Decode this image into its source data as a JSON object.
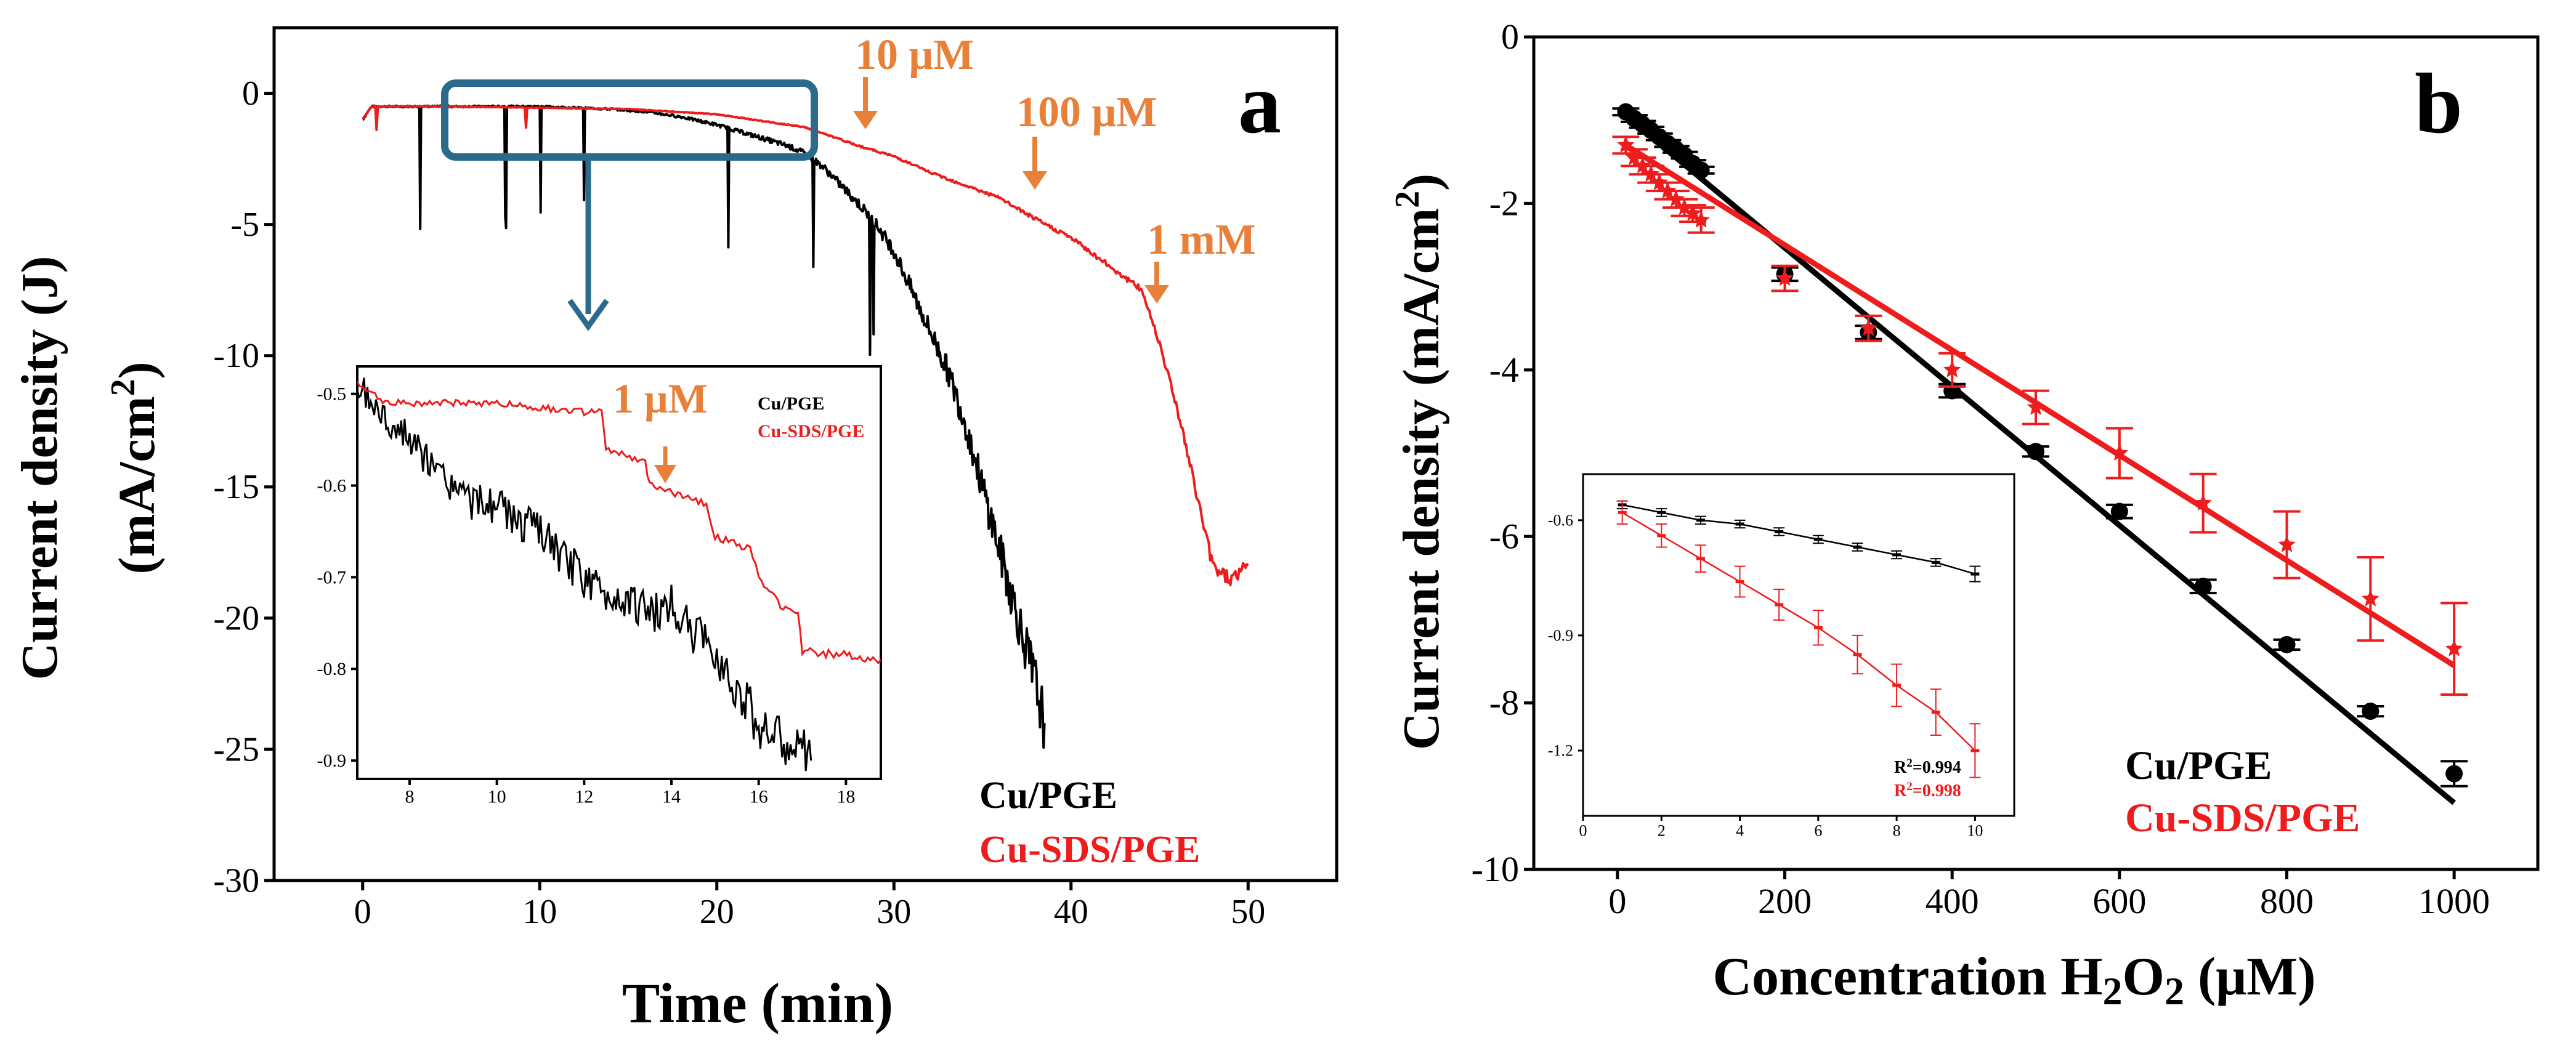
{
  "colors": {
    "black_series": "#000000",
    "red_series": "#ee1c1c",
    "annotation": "#e8803a",
    "inset_box": "#2b6a8a"
  },
  "chart_data": [
    {
      "id": "a",
      "type": "line",
      "panel_label": "a",
      "xlabel": "Time (min)",
      "ylabel_line1": "Current density (J)",
      "ylabel_line2_prefix": "(mA/cm",
      "ylabel_line2_sup": "2",
      "ylabel_line2_suffix": ")",
      "xlim": [
        -5,
        55
      ],
      "ylim": [
        -30,
        2.5
      ],
      "xticks": [
        0,
        10,
        20,
        30,
        40,
        50
      ],
      "yticks": [
        0,
        -5,
        -10,
        -15,
        -20,
        -25,
        -30
      ],
      "xtick_labels": [
        "0",
        "10",
        "20",
        "30",
        "40",
        "50"
      ],
      "ytick_labels": [
        "0",
        "-5",
        "-10",
        "-15",
        "-20",
        "-25",
        "-30"
      ],
      "legend": [
        "Cu/PGE",
        "Cu-SDS/PGE"
      ],
      "annotations": [
        {
          "text": "10 μM",
          "x": 28.5,
          "y": -2.2
        },
        {
          "text": "100 μM",
          "x": 38,
          "y": -6.0
        },
        {
          "text": "1 mM",
          "x": 44.5,
          "y": -12.8
        }
      ],
      "highlight_range": {
        "x": [
          5.5,
          25.5
        ],
        "y": [
          -4.0,
          -0.2
        ]
      },
      "series": [
        {
          "name": "Cu/PGE",
          "x": [
            0,
            0.5,
            2,
            5,
            8,
            10,
            12,
            14,
            16,
            18,
            20,
            22,
            24,
            25,
            26,
            27,
            28,
            29,
            30,
            31,
            32,
            33,
            34,
            35,
            36,
            37,
            38,
            38.5
          ],
          "y": [
            -1.0,
            -0.5,
            -0.5,
            -0.5,
            -0.5,
            -0.5,
            -0.55,
            -0.6,
            -0.7,
            -0.9,
            -1.2,
            -1.6,
            -2.0,
            -2.3,
            -2.8,
            -3.5,
            -4.2,
            -5.0,
            -6.0,
            -7.5,
            -9.0,
            -10.5,
            -12.5,
            -15.0,
            -17.5,
            -20.0,
            -22.5,
            -24.0
          ]
        },
        {
          "name": "Cu-SDS/PGE",
          "x": [
            0,
            0.5,
            2,
            5,
            10,
            15,
            20,
            25,
            28,
            30,
            32,
            34,
            36,
            38,
            40,
            42,
            44,
            45,
            46,
            47,
            48,
            49,
            50
          ],
          "y": [
            -1.0,
            -0.5,
            -0.5,
            -0.5,
            -0.55,
            -0.6,
            -0.8,
            -1.3,
            -2.0,
            -2.4,
            -3.0,
            -3.5,
            -4.0,
            -4.8,
            -5.5,
            -6.5,
            -7.5,
            -9.5,
            -12.0,
            -15.0,
            -18.0,
            -18.5,
            -18.0
          ]
        }
      ]
    },
    {
      "id": "a-inset",
      "type": "line",
      "xlim": [
        6.8,
        18.8
      ],
      "ylim": [
        -0.92,
        -0.47
      ],
      "xticks": [
        8,
        10,
        12,
        14,
        16,
        18
      ],
      "yticks": [
        -0.5,
        -0.6,
        -0.7,
        -0.8,
        -0.9
      ],
      "xtick_labels": [
        "8",
        "10",
        "12",
        "14",
        "16",
        "18"
      ],
      "ytick_labels": [
        "-0.5",
        "-0.6",
        "-0.7",
        "-0.8",
        "-0.9"
      ],
      "legend": [
        "Cu/PGE",
        "Cu-SDS/PGE"
      ],
      "annotations": [
        {
          "text": "1 μM",
          "x": 14.0,
          "y": -0.565
        }
      ],
      "series": [
        {
          "name": "Cu/PGE",
          "x": [
            6.8,
            7.5,
            8,
            8.5,
            9,
            9.5,
            10,
            10.5,
            11,
            11.5,
            12,
            12.5,
            13,
            13.5,
            14,
            14.5,
            15,
            15.5,
            16,
            16.5,
            17,
            17.2
          ],
          "y": [
            -0.49,
            -0.53,
            -0.55,
            -0.58,
            -0.6,
            -0.62,
            -0.62,
            -0.64,
            -0.65,
            -0.68,
            -0.7,
            -0.72,
            -0.72,
            -0.74,
            -0.73,
            -0.76,
            -0.78,
            -0.82,
            -0.86,
            -0.88,
            -0.89,
            -0.9
          ]
        },
        {
          "name": "Cu-SDS/PGE",
          "x": [
            6.8,
            7.5,
            9,
            10,
            11,
            12,
            12.4,
            12.5,
            13.4,
            13.5,
            14.2,
            14.8,
            15.0,
            15.8,
            16.0,
            16.5,
            16.9,
            17.0,
            18.8
          ],
          "y": [
            -0.49,
            -0.51,
            -0.51,
            -0.51,
            -0.515,
            -0.52,
            -0.52,
            -0.56,
            -0.575,
            -0.6,
            -0.61,
            -0.62,
            -0.655,
            -0.67,
            -0.7,
            -0.73,
            -0.74,
            -0.78,
            -0.79
          ]
        }
      ]
    },
    {
      "id": "b",
      "type": "scatter",
      "panel_label": "b",
      "xlabel_prefix": "Concentration H",
      "xlabel_sub1": "2",
      "xlabel_mid": "O",
      "xlabel_sub2": "2",
      "xlabel_suffix": " (μM)",
      "ylabel_prefix": "Current density (mA/cm",
      "ylabel_sup": "2",
      "ylabel_suffix": ")",
      "xlim": [
        -100,
        1100
      ],
      "ylim": [
        -10,
        0
      ],
      "xticks": [
        0,
        200,
        400,
        600,
        800,
        1000
      ],
      "yticks": [
        0,
        -2,
        -4,
        -6,
        -8,
        -10
      ],
      "xtick_labels": [
        "0",
        "200",
        "400",
        "600",
        "800",
        "1000"
      ],
      "ytick_labels": [
        "0",
        "-2",
        "-4",
        "-6",
        "-8",
        "-10"
      ],
      "legend": [
        "Cu/PGE",
        "Cu-SDS/PGE"
      ],
      "series": [
        {
          "name": "Cu/PGE",
          "marker": "circle",
          "x": [
            10,
            20,
            30,
            40,
            50,
            60,
            70,
            80,
            90,
            100,
            200,
            300,
            400,
            500,
            600,
            700,
            800,
            900,
            1000
          ],
          "y": [
            -0.9,
            -0.98,
            -1.05,
            -1.12,
            -1.2,
            -1.28,
            -1.35,
            -1.42,
            -1.52,
            -1.6,
            -2.85,
            -3.55,
            -4.25,
            -4.98,
            -5.7,
            -6.6,
            -7.3,
            -8.1,
            -8.85
          ],
          "err": [
            0.04,
            0.04,
            0.04,
            0.04,
            0.04,
            0.04,
            0.04,
            0.04,
            0.04,
            0.04,
            0.08,
            0.08,
            0.08,
            0.06,
            0.08,
            0.08,
            0.06,
            0.06,
            0.15
          ],
          "fit": {
            "x": [
              10,
              1000
            ],
            "y": [
              -0.95,
              -9.2
            ]
          }
        },
        {
          "name": "Cu-SDS/PGE",
          "marker": "star",
          "x": [
            10,
            20,
            30,
            40,
            50,
            60,
            70,
            80,
            90,
            100,
            200,
            300,
            400,
            500,
            600,
            700,
            800,
            900,
            1000
          ],
          "y": [
            -1.3,
            -1.45,
            -1.55,
            -1.65,
            -1.75,
            -1.85,
            -1.95,
            -2.05,
            -2.12,
            -2.2,
            -2.9,
            -3.5,
            -4.0,
            -4.45,
            -5.0,
            -5.6,
            -6.1,
            -6.75,
            -7.35
          ],
          "err": [
            0.1,
            0.1,
            0.1,
            0.1,
            0.1,
            0.1,
            0.1,
            0.1,
            0.1,
            0.15,
            0.15,
            0.15,
            0.2,
            0.2,
            0.3,
            0.35,
            0.4,
            0.5,
            0.55
          ],
          "fit": {
            "x": [
              10,
              1000
            ],
            "y": [
              -1.3,
              -7.55
            ]
          }
        }
      ]
    },
    {
      "id": "b-inset",
      "type": "scatter",
      "xlim": [
        0,
        11
      ],
      "ylim": [
        -1.37,
        -0.48
      ],
      "xticks": [
        0,
        2,
        4,
        6,
        8,
        10
      ],
      "yticks": [
        -0.6,
        -0.9,
        -1.2
      ],
      "xtick_labels": [
        "0",
        "2",
        "4",
        "6",
        "8",
        "10"
      ],
      "ytick_labels": [
        "-0.6",
        "-0.9",
        "-1.2"
      ],
      "r2_labels": [
        {
          "prefix": "R",
          "sup": "2",
          "value": "=0.994",
          "series": "Cu/PGE"
        },
        {
          "prefix": "R",
          "sup": "2",
          "value": "=0.998",
          "series": "Cu-SDS/PGE"
        }
      ],
      "series": [
        {
          "name": "Cu/PGE",
          "marker": "dash",
          "x": [
            1,
            2,
            3,
            4,
            5,
            6,
            7,
            8,
            9,
            10
          ],
          "y": [
            -0.56,
            -0.58,
            -0.6,
            -0.61,
            -0.63,
            -0.65,
            -0.67,
            -0.69,
            -0.71,
            -0.74
          ],
          "err": [
            0.01,
            0.01,
            0.01,
            0.01,
            0.01,
            0.01,
            0.01,
            0.01,
            0.01,
            0.02
          ]
        },
        {
          "name": "Cu-SDS/PGE",
          "marker": "dash",
          "x": [
            1,
            2,
            3,
            4,
            5,
            6,
            7,
            8,
            9,
            10
          ],
          "y": [
            -0.58,
            -0.64,
            -0.7,
            -0.76,
            -0.82,
            -0.88,
            -0.95,
            -1.03,
            -1.1,
            -1.2
          ],
          "err": [
            0.03,
            0.03,
            0.035,
            0.04,
            0.04,
            0.045,
            0.05,
            0.055,
            0.06,
            0.07
          ]
        }
      ]
    }
  ]
}
